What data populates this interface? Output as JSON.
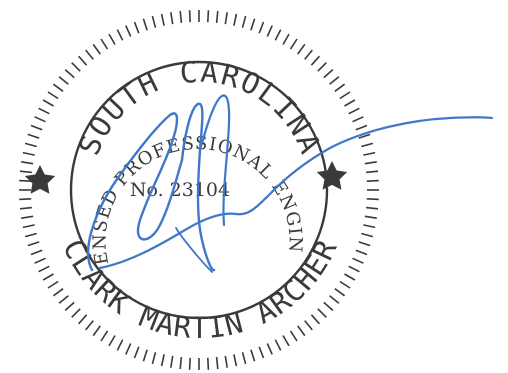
{
  "seal": {
    "state": "SOUTH CAROLINA",
    "engineer_name": "CLARK MARTIN ARCHER",
    "license_title": "LICENSED PROFESSIONAL ENGINEER",
    "license_number": "No. 23104"
  },
  "signature": {
    "kind": "handwritten-signature"
  },
  "colors": {
    "seal_ink": "#3a3a3a",
    "signature_ink": "#3f78c8",
    "background": "#ffffff"
  },
  "icons": [
    "star-icon"
  ]
}
